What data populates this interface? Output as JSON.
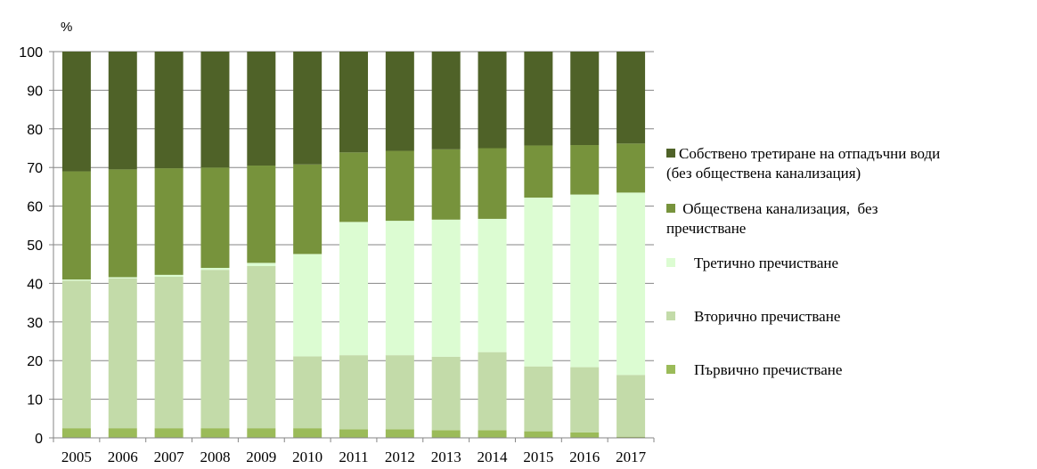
{
  "chart_data": {
    "type": "bar",
    "stacked": true,
    "unit": "%",
    "ylim": [
      0,
      100
    ],
    "yticks": [
      0,
      10,
      20,
      30,
      40,
      50,
      60,
      70,
      80,
      90,
      100
    ],
    "categories": [
      "2005",
      "2006",
      "2007",
      "2008",
      "2009",
      "2010",
      "2011",
      "2012",
      "2013",
      "2014",
      "2015",
      "2016",
      "2017"
    ],
    "legend_position": "right",
    "series": [
      {
        "name": "Първично пречистване",
        "color": "#9bbb59",
        "values": [
          2.5,
          2.5,
          2.5,
          2.5,
          2.5,
          2.5,
          2.2,
          2.2,
          2.0,
          2.0,
          1.7,
          1.4,
          0.3
        ]
      },
      {
        "name": "Вторично пречистване",
        "color": "#c3dba9",
        "values": [
          38.2,
          38.8,
          39.2,
          41.0,
          42.0,
          18.6,
          19.2,
          19.2,
          19.0,
          20.2,
          16.8,
          16.9,
          16.0
        ]
      },
      {
        "name": "Третично пречистване",
        "color": "#dcfcd2",
        "values": [
          0.3,
          0.3,
          0.5,
          0.5,
          0.8,
          26.5,
          34.5,
          34.8,
          35.5,
          34.5,
          43.7,
          44.7,
          47.2
        ]
      },
      {
        "name": "Обществена канализация,  без пречистване",
        "color": "#77933c",
        "values": [
          28.0,
          27.9,
          27.6,
          26.0,
          25.2,
          23.2,
          18.0,
          18.1,
          18.2,
          18.3,
          13.5,
          12.8,
          12.7
        ]
      },
      {
        "name": "Собствено третиране на отпадъчни води (без обществена канализация)",
        "color": "#4f6228",
        "values": [
          31.0,
          30.5,
          30.2,
          30.0,
          29.5,
          29.2,
          26.1,
          25.7,
          25.3,
          25.0,
          24.3,
          24.2,
          23.8
        ]
      }
    ]
  },
  "legend": {
    "items": [
      {
        "line1": "Собствено третиране на отпадъчни води",
        "line2": "(без обществена канализация)",
        "color": "#4f6228"
      },
      {
        "line1": " Обществена канализация,  без",
        "line2": "пречистване",
        "color": "#77933c"
      },
      {
        "line1": "    Третично пречистване",
        "line2": "",
        "color": "#dcfcd2"
      },
      {
        "line1": "    Вторично пречистване",
        "line2": "",
        "color": "#c3dba9"
      },
      {
        "line1": "    Първично пречистване",
        "line2": "",
        "color": "#9bbb59"
      }
    ]
  }
}
